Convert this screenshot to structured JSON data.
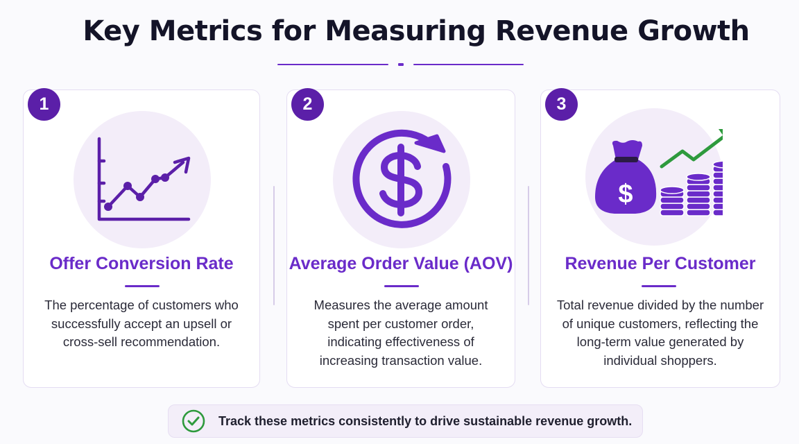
{
  "title": "Key Metrics for Measuring Revenue Growth",
  "colors": {
    "accent": "#6a2bc9",
    "badge": "#5b1fa8",
    "icon_bg": "#f3edf9",
    "divider": "#6a2bc9",
    "trend_green": "#2e9a3d",
    "check_green": "#2e9a3d"
  },
  "cards": [
    {
      "number": "1",
      "icon": "line-chart-trend-up-icon",
      "title": "Offer Conversion Rate",
      "description": "The percentage of customers who successfully accept an upsell or cross-sell recommendation."
    },
    {
      "number": "2",
      "icon": "dollar-circular-arrow-icon",
      "title": "Average Order Value (AOV)",
      "description": "Measures the average amount spent per customer order, indicating effectiveness of increasing transaction value."
    },
    {
      "number": "3",
      "icon": "money-bag-coins-growth-icon",
      "title": "Revenue Per Customer",
      "description": "Total revenue divided by the number of unique customers, reflecting the long-term value generated by individual shoppers."
    }
  ],
  "footer": {
    "icon": "check-circle-icon",
    "text": "Track these metrics consistently to drive sustainable revenue growth."
  }
}
